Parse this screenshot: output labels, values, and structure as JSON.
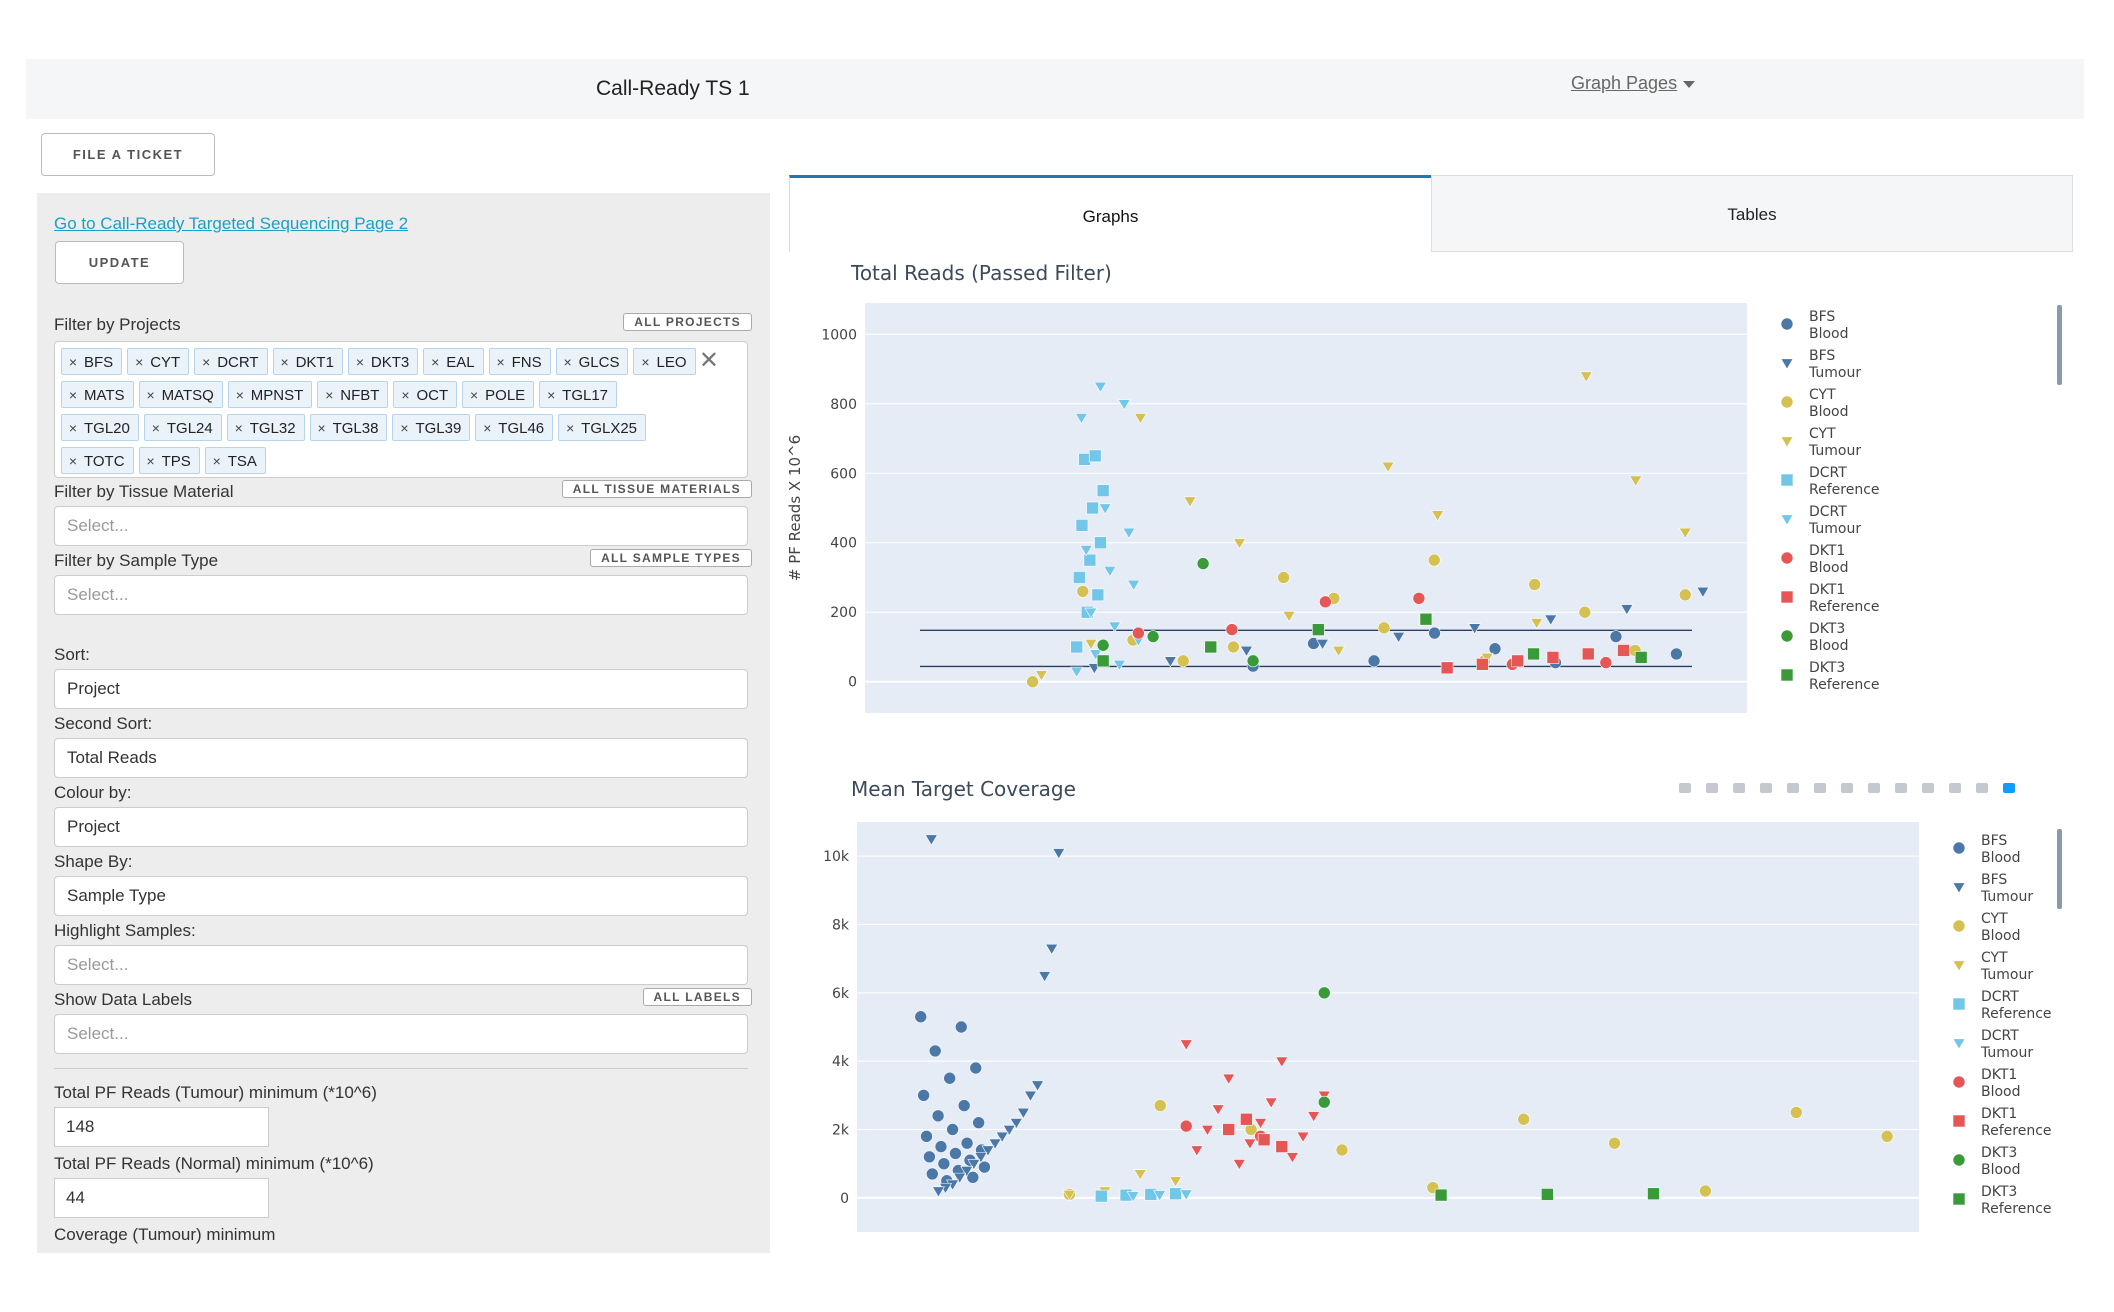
{
  "navbar": {
    "title": "Call-Ready TS 1",
    "menu_label": "Graph Pages"
  },
  "ticket_button": "FILE A TICKET",
  "sidebar": {
    "link": "Go to Call-Ready Targeted Sequencing Page 2",
    "update_label": "UPDATE",
    "projects": {
      "label": "Filter by Projects",
      "all_label": "ALL PROJECTS",
      "tags": [
        "BFS",
        "CYT",
        "DCRT",
        "DKT1",
        "DKT3",
        "EAL",
        "FNS",
        "GLCS",
        "LEO",
        "MATS",
        "MATSQ",
        "MPNST",
        "NFBT",
        "OCT",
        "POLE",
        "TGL17",
        "TGL20",
        "TGL24",
        "TGL32",
        "TGL38",
        "TGL39",
        "TGL46",
        "TGLX25",
        "TOTC",
        "TPS",
        "TSA"
      ],
      "clear_symbol": "✕",
      "tag_remove_symbol": "×"
    },
    "tissue": {
      "label": "Filter by Tissue Material",
      "all_label": "ALL TISSUE MATERIALS",
      "placeholder": "Select..."
    },
    "sample_type": {
      "label": "Filter by Sample Type",
      "all_label": "ALL SAMPLE TYPES",
      "placeholder": "Select..."
    },
    "sort": {
      "label": "Sort:",
      "value": "Project"
    },
    "second_sort": {
      "label": "Second Sort:",
      "value": "Total Reads"
    },
    "colour_by": {
      "label": "Colour by:",
      "value": "Project"
    },
    "shape_by": {
      "label": "Shape By:",
      "value": "Sample Type"
    },
    "highlight": {
      "label": "Highlight Samples:",
      "placeholder": "Select..."
    },
    "data_labels": {
      "label": "Show Data Labels",
      "all_label": "ALL LABELS",
      "placeholder": "Select..."
    },
    "tumour_min": {
      "label": "Total PF Reads (Tumour) minimum (*10^6)",
      "value": "148"
    },
    "normal_min": {
      "label": "Total PF Reads (Normal) minimum (*10^6)",
      "value": "44"
    },
    "coverage_min": {
      "label": "Coverage (Tumour) minimum"
    }
  },
  "tabs": [
    "Graphs",
    "Tables"
  ],
  "colors": {
    "BFS": "#4c78a8",
    "CYT": "#d4c152",
    "DCRT": "#72c6e8",
    "DKT1": "#e45756",
    "DKT3": "#3a9a3a",
    "plot_bg": "#e5ecf6",
    "accent": "#1f77b4"
  },
  "legend": [
    {
      "name": "BFS",
      "sub": "Blood",
      "shape": "circle",
      "project": "BFS"
    },
    {
      "name": "BFS",
      "sub": "Tumour",
      "shape": "triangle-down",
      "project": "BFS"
    },
    {
      "name": "CYT",
      "sub": "Blood",
      "shape": "circle",
      "project": "CYT"
    },
    {
      "name": "CYT",
      "sub": "Tumour",
      "shape": "triangle-down",
      "project": "CYT"
    },
    {
      "name": "DCRT",
      "sub": "Reference",
      "shape": "square",
      "project": "DCRT"
    },
    {
      "name": "DCRT",
      "sub": "Tumour",
      "shape": "triangle-down",
      "project": "DCRT"
    },
    {
      "name": "DKT1",
      "sub": "Blood",
      "shape": "circle",
      "project": "DKT1"
    },
    {
      "name": "DKT1",
      "sub": "Reference",
      "shape": "square",
      "project": "DKT1"
    },
    {
      "name": "DKT3",
      "sub": "Blood",
      "shape": "circle",
      "project": "DKT3"
    },
    {
      "name": "DKT3",
      "sub": "Reference",
      "shape": "square",
      "project": "DKT3"
    }
  ],
  "modebar_icons": [
    "camera-icon",
    "zoom-icon",
    "pan-icon",
    "box-select-icon",
    "lasso-icon",
    "zoom-in-icon",
    "zoom-out-icon",
    "autoscale-icon",
    "reset-axes-icon",
    "spike-lines-icon",
    "hover-closest-icon",
    "hover-compare-icon",
    "plotly-logo-icon"
  ],
  "chart_data": [
    {
      "type": "scatter",
      "title": "Total Reads (Passed Filter)",
      "ylabel": "# PF Reads X 10^6",
      "xlabel": "",
      "ylim": [
        -90,
        1090
      ],
      "yticks": [
        "0",
        "200",
        "400",
        "600",
        "800",
        "1000"
      ],
      "ytick_values": [
        0,
        200,
        400,
        600,
        800,
        1000
      ],
      "threshold_lines": [
        148,
        44
      ],
      "grid": true,
      "legend_position": "right",
      "series": [
        {
          "key": "BFS-Blood",
          "values": [
            45,
            55,
            60,
            80,
            95,
            110,
            130,
            140
          ]
        },
        {
          "key": "BFS-Tumour",
          "values": [
            40,
            60,
            90,
            110,
            130,
            155,
            180,
            210,
            260
          ]
        },
        {
          "key": "CYT-Blood",
          "values": [
            0,
            60,
            100,
            250,
            350,
            60,
            90,
            155,
            120,
            200,
            240,
            260,
            280,
            300
          ]
        },
        {
          "key": "CYT-Tumour",
          "values": [
            20,
            70,
            400,
            430,
            480,
            520,
            580,
            620,
            760,
            880,
            90,
            110,
            170,
            190
          ]
        },
        {
          "key": "DCRT-Reference",
          "values": [
            100,
            200,
            250,
            300,
            350,
            400,
            450,
            500,
            550,
            640,
            650
          ]
        },
        {
          "key": "DCRT-Tumour",
          "values": [
            30,
            50,
            80,
            120,
            160,
            200,
            280,
            320,
            380,
            430,
            500,
            760,
            800,
            850
          ]
        },
        {
          "key": "DKT1-Blood",
          "values": [
            140,
            150,
            230,
            240,
            50,
            55
          ]
        },
        {
          "key": "DKT1-Reference",
          "values": [
            40,
            50,
            60,
            70,
            80,
            90
          ]
        },
        {
          "key": "DKT3-Blood",
          "values": [
            105,
            130,
            340,
            60
          ]
        },
        {
          "key": "DKT3-Reference",
          "values": [
            60,
            100,
            150,
            180,
            80,
            70
          ]
        }
      ]
    },
    {
      "type": "scatter",
      "title": "Mean Target Coverage",
      "ylabel": "",
      "xlabel": "",
      "ylim": [
        -1000,
        11000
      ],
      "yticks": [
        "0",
        "2k",
        "4k",
        "6k",
        "8k",
        "10k"
      ],
      "ytick_values": [
        0,
        2000,
        4000,
        6000,
        8000,
        10000
      ],
      "grid": true,
      "legend_position": "right",
      "series": [
        {
          "key": "BFS-Blood",
          "values": [
            5300,
            5000,
            4300,
            3800,
            3500,
            3000,
            2700,
            2400,
            2200,
            2000,
            1800,
            1600,
            1500,
            1400,
            1300,
            1200,
            1100,
            1000,
            900,
            800,
            700,
            600,
            500
          ]
        },
        {
          "key": "BFS-Tumour",
          "values": [
            10500,
            10100,
            7300,
            6500,
            3300,
            3000,
            2500,
            2200,
            2000,
            1800,
            1600,
            1400,
            1200,
            1000,
            800,
            600,
            400,
            300,
            200
          ]
        },
        {
          "key": "CYT-Blood",
          "values": [
            100,
            200,
            300,
            2700,
            2500,
            2300,
            2000,
            1800,
            1600,
            1400
          ]
        },
        {
          "key": "CYT-Tumour",
          "values": [
            100,
            200,
            700,
            500
          ]
        },
        {
          "key": "DCRT-Reference",
          "values": [
            50,
            80,
            100,
            120
          ]
        },
        {
          "key": "DCRT-Tumour",
          "values": [
            60,
            90,
            110
          ]
        },
        {
          "key": "DKT1-Blood",
          "values": [
            2100,
            1800
          ]
        },
        {
          "key": "DKT1-Reference",
          "values": [
            2000,
            2300,
            1700,
            1500
          ]
        },
        {
          "key": "DKT1-Tumour",
          "values": [
            4500,
            4000,
            3500,
            3000,
            2800,
            2600,
            2400,
            2200,
            2000,
            1800,
            1600,
            1400,
            1200,
            1000
          ]
        },
        {
          "key": "DKT3-Blood",
          "values": [
            6000,
            2800
          ]
        },
        {
          "key": "DKT3-Reference",
          "values": [
            80,
            100,
            120
          ]
        }
      ]
    }
  ]
}
